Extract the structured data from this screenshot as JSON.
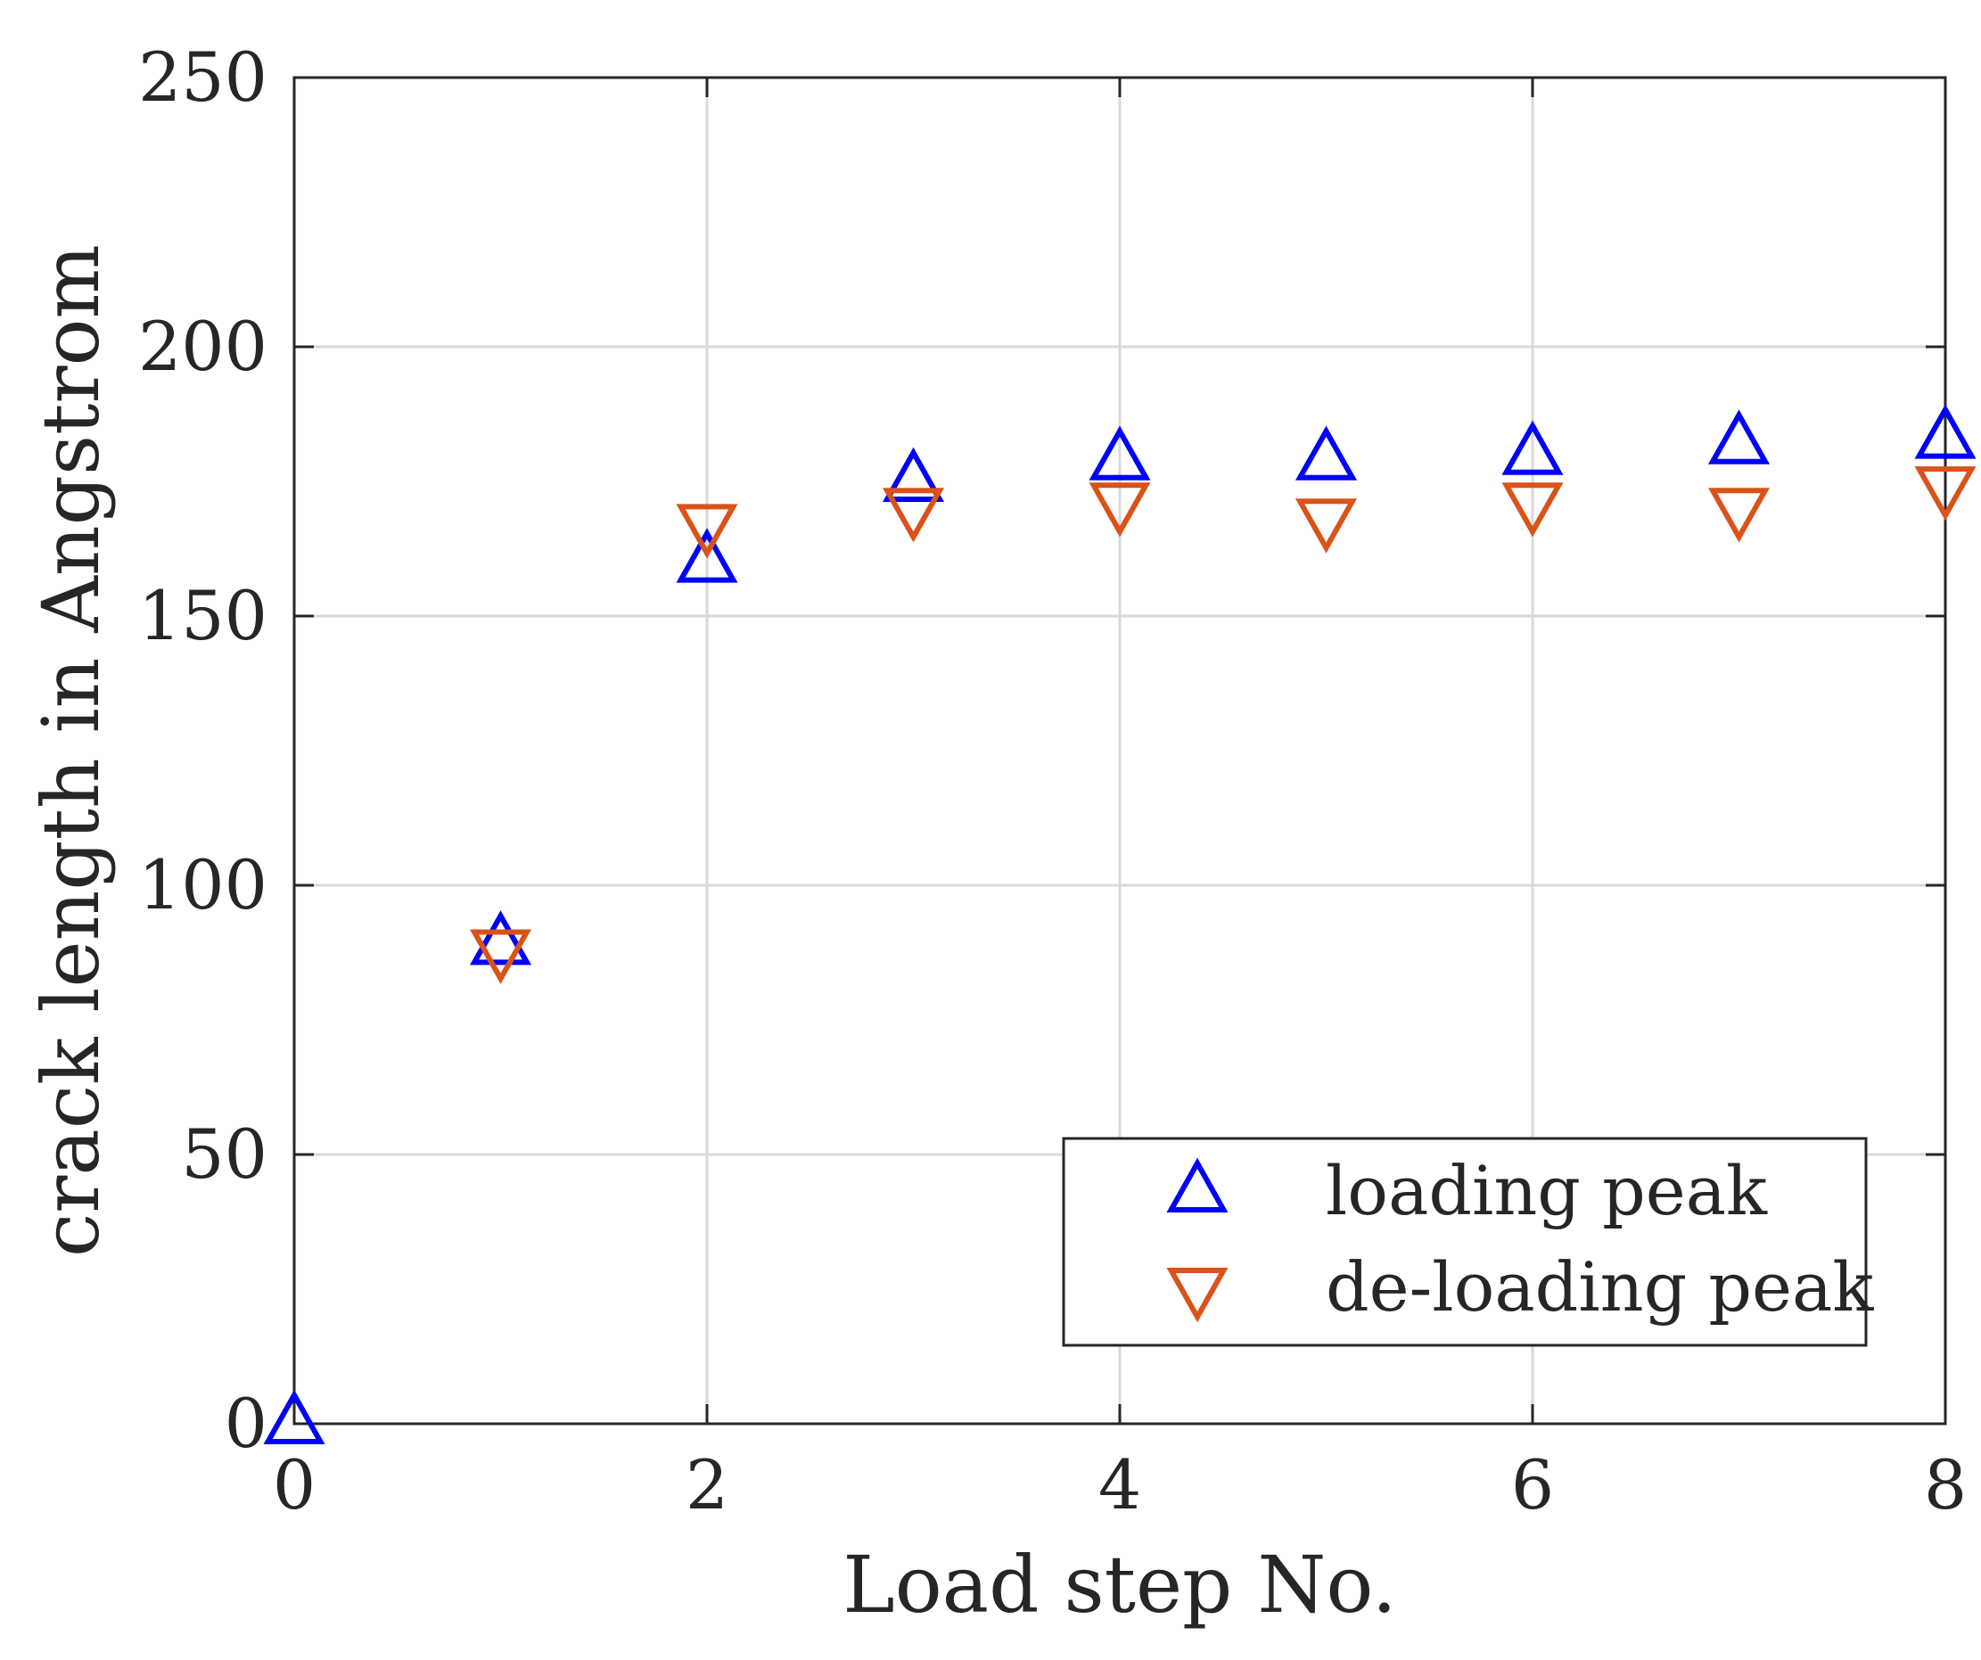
{
  "chart_data": {
    "type": "scatter",
    "title": "",
    "xlabel": "Load step No.",
    "ylabel": "crack length in Angstrom",
    "xlim": [
      0,
      8
    ],
    "ylim": [
      0,
      250
    ],
    "xticks": [
      0,
      2,
      4,
      6,
      8
    ],
    "yticks": [
      0,
      50,
      100,
      150,
      200,
      250
    ],
    "grid": true,
    "legend_position": "bottom-right",
    "series": [
      {
        "name": "loading peak",
        "marker": "triangle-up",
        "color": "#0000FF",
        "x": [
          0,
          1,
          2,
          3,
          4,
          5,
          6,
          7,
          8
        ],
        "y": [
          0,
          89,
          160,
          175,
          179,
          179,
          180,
          182,
          183
        ]
      },
      {
        "name": "de-loading peak",
        "marker": "triangle-down",
        "color": "#D95319",
        "x": [
          1,
          2,
          3,
          4,
          5,
          6,
          7,
          8
        ],
        "y": [
          88,
          167,
          170,
          171,
          168,
          171,
          170,
          174
        ]
      }
    ]
  }
}
